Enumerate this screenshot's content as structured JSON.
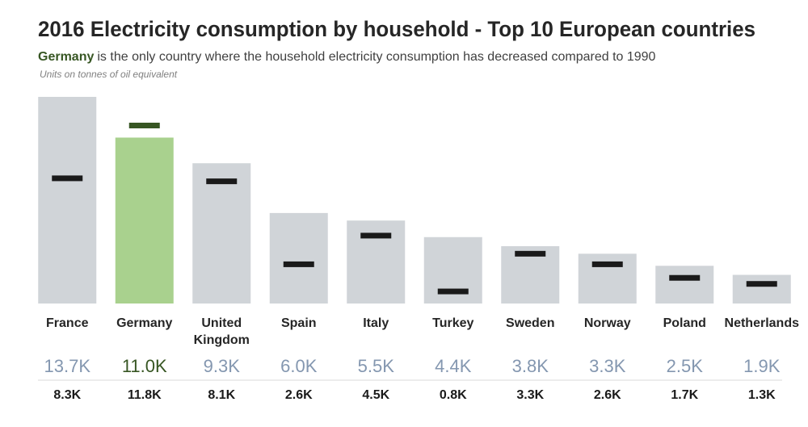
{
  "chart_data": {
    "type": "bar",
    "title": "2016 Electricity consumption by household - Top 10 European countries",
    "subtitle_highlight": "Germany",
    "subtitle": "is the only country where the household electricity consumption has decreased compared to 1990",
    "note": "Units on tonnes of oil equivalent",
    "categories": [
      "France",
      "Germany",
      "United Kingdom",
      "Spain",
      "Italy",
      "Turkey",
      "Sweden",
      "Norway",
      "Poland",
      "Netherlands"
    ],
    "ylim": [
      0,
      13700
    ],
    "series": [
      {
        "values": [
          13700,
          11000,
          9300,
          6000,
          5500,
          4400,
          3800,
          3300,
          2500,
          1900
        ],
        "value_labels": [
          "13.7K",
          "11.0K",
          "9.3K",
          "6.0K",
          "5.5K",
          "4.4K",
          "3.8K",
          "3.3K",
          "2.5K",
          "1.9K"
        ],
        "colors": [
          "#d0d4d8",
          "#a9d18e",
          "#d0d4d8",
          "#d0d4d8",
          "#d0d4d8",
          "#d0d4d8",
          "#d0d4d8",
          "#d0d4d8",
          "#d0d4d8",
          "#d0d4d8"
        ],
        "label_colors": [
          "#8497b0",
          "#375623",
          "#8497b0",
          "#8497b0",
          "#8497b0",
          "#8497b0",
          "#8497b0",
          "#8497b0",
          "#8497b0",
          "#8497b0"
        ]
      },
      {
        "values": [
          8300,
          11800,
          8100,
          2600,
          4500,
          800,
          3300,
          2600,
          1700,
          1300
        ],
        "value_labels": [
          "8.3K",
          "11.8K",
          "8.1K",
          "2.6K",
          "4.5K",
          "0.8K",
          "3.3K",
          "2.6K",
          "1.7K",
          "1.3K"
        ],
        "colors": [
          "#1a1a1a",
          "#375623",
          "#1a1a1a",
          "#1a1a1a",
          "#1a1a1a",
          "#1a1a1a",
          "#1a1a1a",
          "#1a1a1a",
          "#1a1a1a",
          "#1a1a1a"
        ]
      }
    ]
  }
}
